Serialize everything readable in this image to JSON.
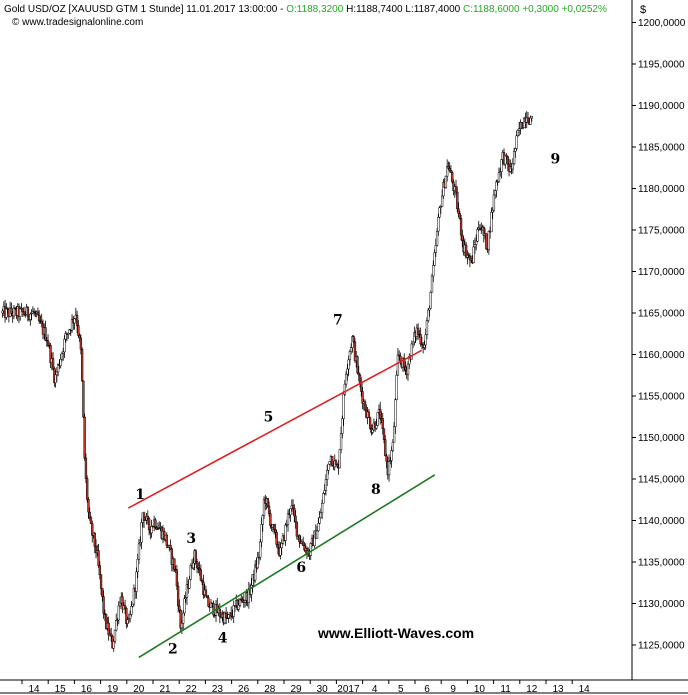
{
  "header": {
    "symbol": "Gold USD/OZ [XAUUSD GTM  1 Stunde]",
    "datetime": "11.01.2017 13:00:00",
    "open": "O:1188,3200",
    "high": "H:1188,7400",
    "low": "L:1187,4000",
    "close": "C:1188,6000",
    "change": "+0,3000",
    "change_pct": "+0,0252%",
    "site": "© www.tradesignalonline.com",
    "currency": "$"
  },
  "watermark": "www.Elliott-Waves.com",
  "colors": {
    "up_candle": "#ffffff",
    "down_candle": "#c0392b",
    "upper_trendline": "#e02020",
    "lower_trendline": "#1e7a1e",
    "header_green": "#22aa22"
  },
  "chart_data": {
    "type": "candlestick",
    "x_tick_labels": [
      "14",
      "15",
      "16",
      "19",
      "20",
      "21",
      "22",
      "23",
      "26",
      "28",
      "29",
      "30",
      "2017",
      "4",
      "5",
      "6",
      "9",
      "10",
      "11",
      "12",
      "13",
      "14"
    ],
    "y_tick_labels": [
      "1200,0000",
      "1195,0000",
      "1190,0000",
      "1185,0000",
      "1180,0000",
      "1175,0000",
      "1170,0000",
      "1165,0000",
      "1160,0000",
      "1155,0000",
      "1150,0000",
      "1145,0000",
      "1140,0000",
      "1135,0000",
      "1130,0000",
      "1125,0000"
    ],
    "ylim": [
      1122,
      1202
    ],
    "price_path": [
      [
        0,
        1165
      ],
      [
        0.5,
        1162
      ],
      [
        0.8,
        1157
      ],
      [
        1.2,
        1162
      ],
      [
        1.6,
        1165
      ],
      [
        1.8,
        1160
      ],
      [
        1.95,
        1146
      ],
      [
        2.1,
        1140
      ],
      [
        2.4,
        1136
      ],
      [
        2.7,
        1128
      ],
      [
        3.0,
        1125
      ],
      [
        3.3,
        1131
      ],
      [
        3.6,
        1127
      ],
      [
        3.9,
        1133
      ],
      [
        4.15,
        1141
      ],
      [
        4.4,
        1139
      ],
      [
        4.6,
        1140
      ],
      [
        5.0,
        1138
      ],
      [
        5.4,
        1134
      ],
      [
        5.6,
        1127
      ],
      [
        5.8,
        1131
      ],
      [
        6.1,
        1136
      ],
      [
        6.3,
        1134
      ],
      [
        6.6,
        1130
      ],
      [
        7.0,
        1129
      ],
      [
        7.4,
        1128
      ],
      [
        7.8,
        1130
      ],
      [
        8.2,
        1131
      ],
      [
        8.6,
        1136
      ],
      [
        8.8,
        1143
      ],
      [
        9.1,
        1139
      ],
      [
        9.4,
        1136
      ],
      [
        9.8,
        1142
      ],
      [
        10.1,
        1138
      ],
      [
        10.5,
        1136
      ],
      [
        10.9,
        1140
      ],
      [
        11.3,
        1148
      ],
      [
        11.6,
        1146
      ],
      [
        11.9,
        1158
      ],
      [
        12.15,
        1162
      ],
      [
        12.4,
        1157
      ],
      [
        12.6,
        1154
      ],
      [
        12.9,
        1151
      ],
      [
        13.2,
        1153
      ],
      [
        13.5,
        1146
      ],
      [
        13.7,
        1149
      ],
      [
        13.9,
        1160
      ],
      [
        14.2,
        1158
      ],
      [
        14.6,
        1163
      ],
      [
        14.9,
        1161
      ],
      [
        15.2,
        1169
      ],
      [
        15.5,
        1178
      ],
      [
        15.8,
        1183
      ],
      [
        16.1,
        1179
      ],
      [
        16.4,
        1173
      ],
      [
        16.7,
        1171
      ],
      [
        17.0,
        1176
      ],
      [
        17.3,
        1173
      ],
      [
        17.6,
        1180
      ],
      [
        17.9,
        1184
      ],
      [
        18.2,
        1182
      ],
      [
        18.5,
        1187
      ],
      [
        18.8,
        1189
      ],
      [
        19.0,
        1188
      ]
    ],
    "trendlines": [
      {
        "name": "upper",
        "points": [
          [
            3.6,
            1141.5
          ],
          [
            14.8,
            1160.5
          ]
        ]
      },
      {
        "name": "lower",
        "points": [
          [
            4.0,
            1123.5
          ],
          [
            15.3,
            1145.5
          ]
        ]
      }
    ],
    "annotations": [
      {
        "label": "1",
        "x": 4.05,
        "y": 1142.6
      },
      {
        "label": "2",
        "x": 5.3,
        "y": 1124.0
      },
      {
        "label": "3",
        "x": 6.0,
        "y": 1137.3
      },
      {
        "label": "4",
        "x": 7.2,
        "y": 1125.3
      },
      {
        "label": "5",
        "x": 8.95,
        "y": 1151.9
      },
      {
        "label": "6",
        "x": 10.2,
        "y": 1133.8
      },
      {
        "label": "7",
        "x": 11.6,
        "y": 1163.6
      },
      {
        "label": "8",
        "x": 13.05,
        "y": 1143.2
      },
      {
        "label": "9",
        "x": 19.9,
        "y": 1183.0
      }
    ]
  }
}
